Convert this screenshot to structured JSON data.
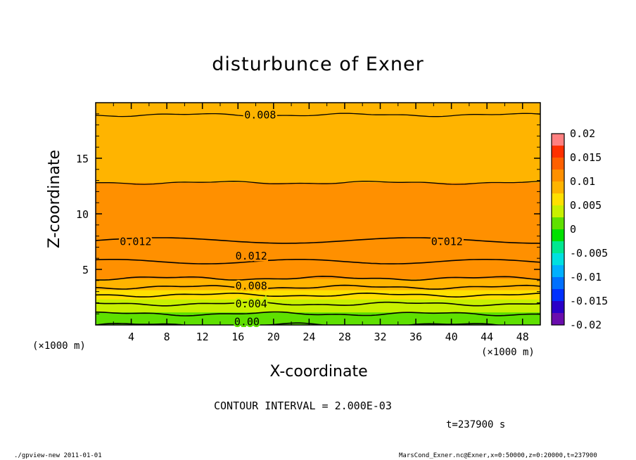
{
  "chart_data": {
    "type": "heatmap",
    "title": "disturbunce of Exner",
    "xlabel": "X-coordinate",
    "ylabel": "Z-coordinate",
    "x_unit": "(×1000 m)",
    "y_unit": "(×1000 m)",
    "xlim": [
      0,
      50
    ],
    "ylim": [
      0,
      20
    ],
    "x_ticks": [
      4,
      8,
      12,
      16,
      20,
      24,
      28,
      32,
      36,
      40,
      44,
      48
    ],
    "y_ticks": [
      5,
      10,
      15
    ],
    "colorbar": {
      "min": -0.02,
      "max": 0.02,
      "tick_labels": [
        "0.02",
        "0.015",
        "0.01",
        "0.005",
        "0",
        "-0.005",
        "-0.01",
        "-0.015",
        "-0.02"
      ],
      "tick_values": [
        0.02,
        0.015,
        0.01,
        0.005,
        0,
        -0.005,
        -0.01,
        -0.015,
        -0.02
      ]
    },
    "contour_interval_label": "CONTOUR INTERVAL = 2.000E-03",
    "time_label": "t=237900 s",
    "contour_labels": [
      {
        "text": "0.008",
        "x": 18.5,
        "z": 18.9
      },
      {
        "text": "0.012",
        "x": 4.5,
        "z": 7.5
      },
      {
        "text": "0.012",
        "x": 17.5,
        "z": 6.2
      },
      {
        "text": "0.012",
        "x": 39.5,
        "z": 7.5
      },
      {
        "text": "0.008",
        "x": 17.5,
        "z": 3.5
      },
      {
        "text": "0.004",
        "x": 17.5,
        "z": 1.9
      },
      {
        "text": "0.00",
        "x": 17.0,
        "z": 0.3
      }
    ],
    "profile": [
      {
        "z": 0.0,
        "value": 0.0
      },
      {
        "z": 1.0,
        "value": 0.002
      },
      {
        "z": 1.9,
        "value": 0.004
      },
      {
        "z": 2.7,
        "value": 0.006
      },
      {
        "z": 3.4,
        "value": 0.008
      },
      {
        "z": 4.2,
        "value": 0.01
      },
      {
        "z": 5.6,
        "value": 0.012
      },
      {
        "z": 7.0,
        "value": 0.0125
      },
      {
        "z": 8.5,
        "value": 0.0115
      },
      {
        "z": 12.8,
        "value": 0.01
      },
      {
        "z": 15.5,
        "value": 0.0095
      },
      {
        "z": 18.9,
        "value": 0.008
      },
      {
        "z": 20.0,
        "value": 0.0075
      }
    ]
  },
  "footer": {
    "left": "./gpview-new   2011-01-01",
    "right": "MarsCond_Exner.nc@Exner,x=0:50000,z=0:20000,t=237900"
  }
}
